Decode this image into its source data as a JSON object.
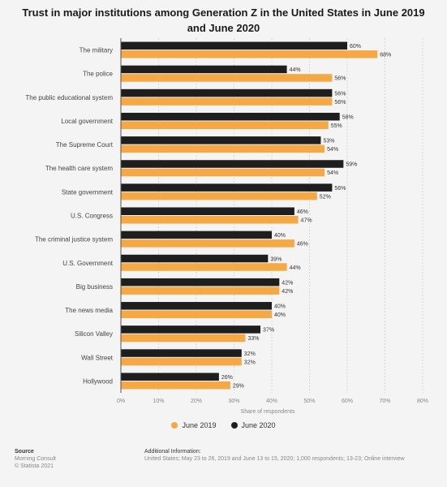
{
  "title": "Trust in major institutions among Generation Z in the United States in June 2019 and June 2020",
  "chart_data": {
    "type": "bar",
    "orientation": "horizontal",
    "categories": [
      "The military",
      "The police",
      "The public educational system",
      "Local government",
      "The Supreme Court",
      "The health care system",
      "State government",
      "U.S. Congress",
      "The criminal justice system",
      "U.S. Government",
      "Big business",
      "The news media",
      "Silicon Valley",
      "Wall Street",
      "Hollywood"
    ],
    "series": [
      {
        "name": "June 2020",
        "color": "#1e1e1e",
        "values": [
          60,
          44,
          56,
          58,
          53,
          59,
          56,
          46,
          40,
          39,
          42,
          40,
          37,
          32,
          26
        ]
      },
      {
        "name": "June 2019",
        "color": "#f5a844",
        "values": [
          68,
          56,
          56,
          55,
          54,
          54,
          52,
          47,
          46,
          44,
          42,
          40,
          33,
          32,
          29
        ]
      }
    ],
    "xlim": [
      0,
      80
    ],
    "xticks": [
      "0%",
      "10%",
      "20%",
      "30%",
      "40%",
      "50%",
      "60%",
      "70%",
      "80%"
    ],
    "xlabel": "Share of respondents",
    "value_suffix": "%",
    "legend": [
      "June 2019",
      "June 2020"
    ],
    "legend_position": "bottom",
    "grid": true
  },
  "footer": {
    "source_heading": "Source",
    "source_lines": [
      "Morning Consult",
      "© Statista 2021"
    ],
    "info_heading": "Additional Information:",
    "info_text": "United States; May 23 to 26, 2019 and June 13 to 15, 2020; 1,000 respondents; 13-23; Online interview"
  }
}
